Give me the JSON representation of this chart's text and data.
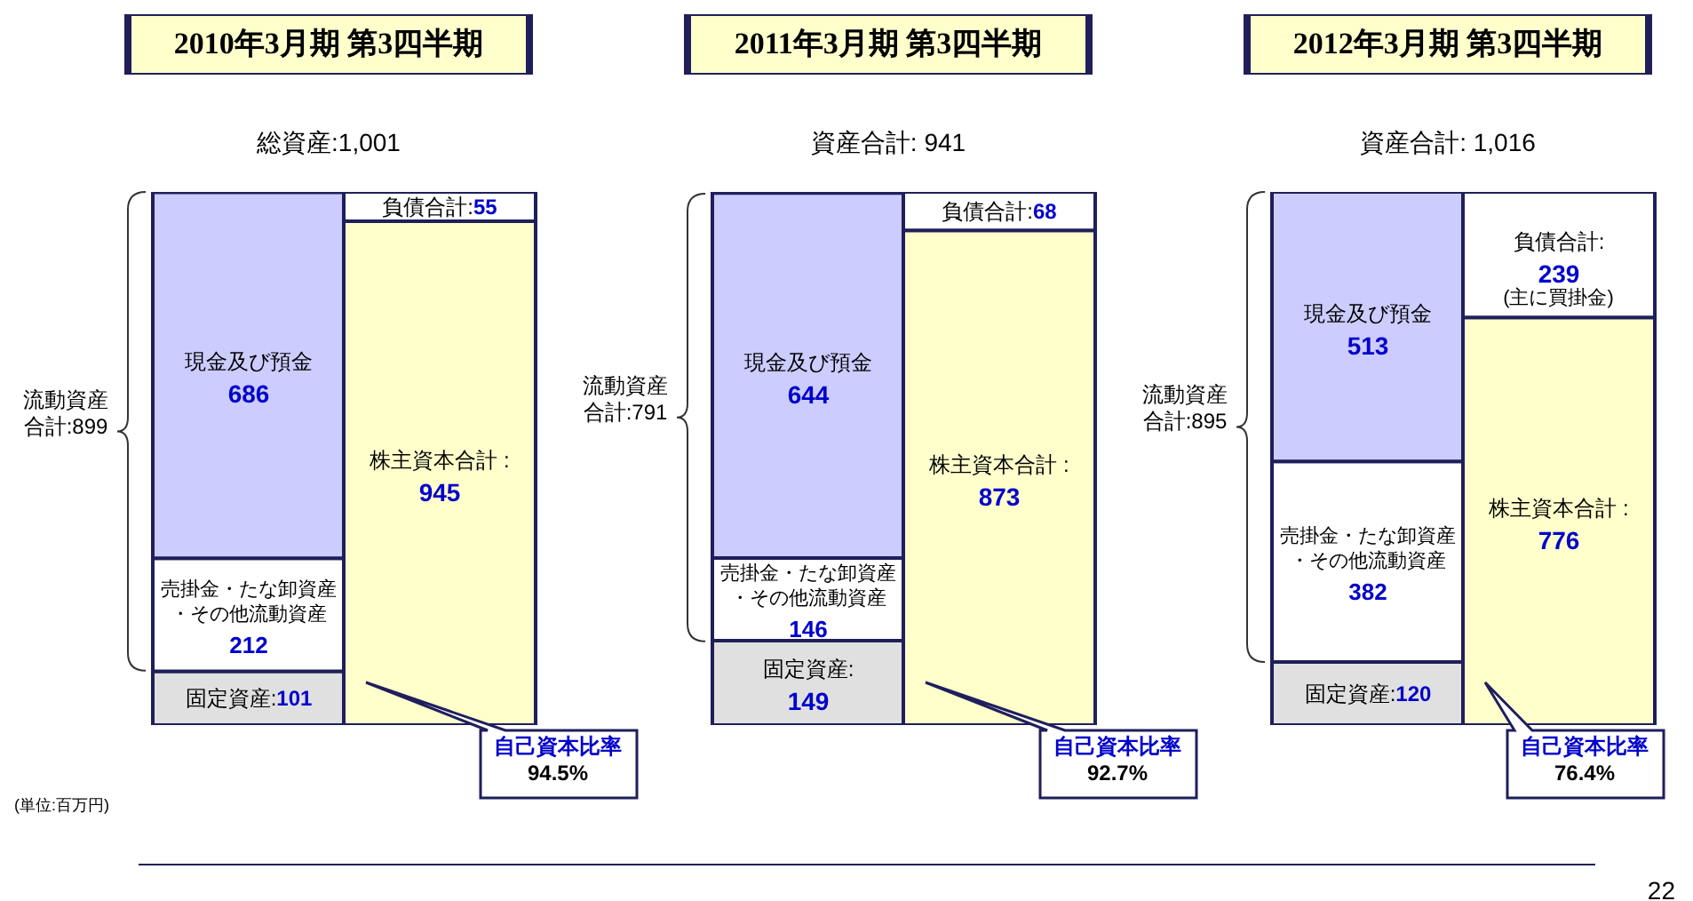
{
  "chart_data": [
    {
      "type": "bar",
      "stacked": true,
      "data_labels": true,
      "title": "2010年3月期 第3四半期",
      "subtitle": "総資産:1,001",
      "categories": [
        null,
        null
      ],
      "series": [
        {
          "name": "固定資産:",
          "color": "#e0e0e0",
          "values": [
            101,
            null
          ]
        },
        {
          "name": "売掛金・たな卸資産・その他流動資産",
          "color": "#ffffff",
          "values": [
            212,
            null
          ]
        },
        {
          "name": "現金及び預金",
          "color": "#ccccff",
          "values": [
            686,
            null
          ]
        },
        {
          "name": "株主資本合計 :",
          "color": "#ffffcc",
          "values": [
            null,
            945
          ]
        },
        {
          "name": "負債合計:",
          "color": "#ffffff",
          "values": [
            null,
            55
          ]
        }
      ],
      "annotations": [
        "流動資産合計:899",
        "自己資本比率\n94.5%",
        "(単位:百万円)"
      ]
    },
    {
      "type": "bar",
      "stacked": true,
      "data_labels": true,
      "title": "2011年3月期 第3四半期",
      "subtitle": "資産合計: 941",
      "categories": [
        null,
        null
      ],
      "series": [
        {
          "name": "固定資産:",
          "color": "#e0e0e0",
          "values": [
            149,
            null
          ]
        },
        {
          "name": "売掛金・たな卸資産・その他流動資産",
          "color": "#ffffff",
          "values": [
            146,
            null
          ]
        },
        {
          "name": "現金及び預金",
          "color": "#ccccff",
          "values": [
            644,
            null
          ]
        },
        {
          "name": "株主資本合計 :",
          "color": "#ffffcc",
          "values": [
            null,
            873
          ]
        },
        {
          "name": "負債合計:",
          "color": "#ffffff",
          "values": [
            null,
            68
          ]
        }
      ],
      "annotations": [
        "流動資産合計:791",
        "自己資本比率\n92.7%"
      ]
    },
    {
      "type": "bar",
      "stacked": true,
      "data_labels": true,
      "title": "2012年3月期 第3四半期",
      "subtitle": "資産合計: 1,016",
      "categories": [
        null,
        null
      ],
      "series": [
        {
          "name": "固定資産:",
          "color": "#e0e0e0",
          "values": [
            120,
            null
          ]
        },
        {
          "name": "売掛金・たな卸資産・その他流動資産",
          "color": "#ffffff",
          "values": [
            382,
            null
          ]
        },
        {
          "name": "現金及び預金",
          "color": "#ccccff",
          "values": [
            513,
            null
          ]
        },
        {
          "name": "株主資本合計 :",
          "color": "#ffffcc",
          "values": [
            null,
            776
          ]
        },
        {
          "name": "負債合計:",
          "color": "#ffffff",
          "values": [
            null,
            239
          ]
        }
      ],
      "annotations": [
        "流動資産合計:895",
        "自己資本比率\n76.4%",
        "(主に買掛金)",
        "22"
      ]
    }
  ]
}
